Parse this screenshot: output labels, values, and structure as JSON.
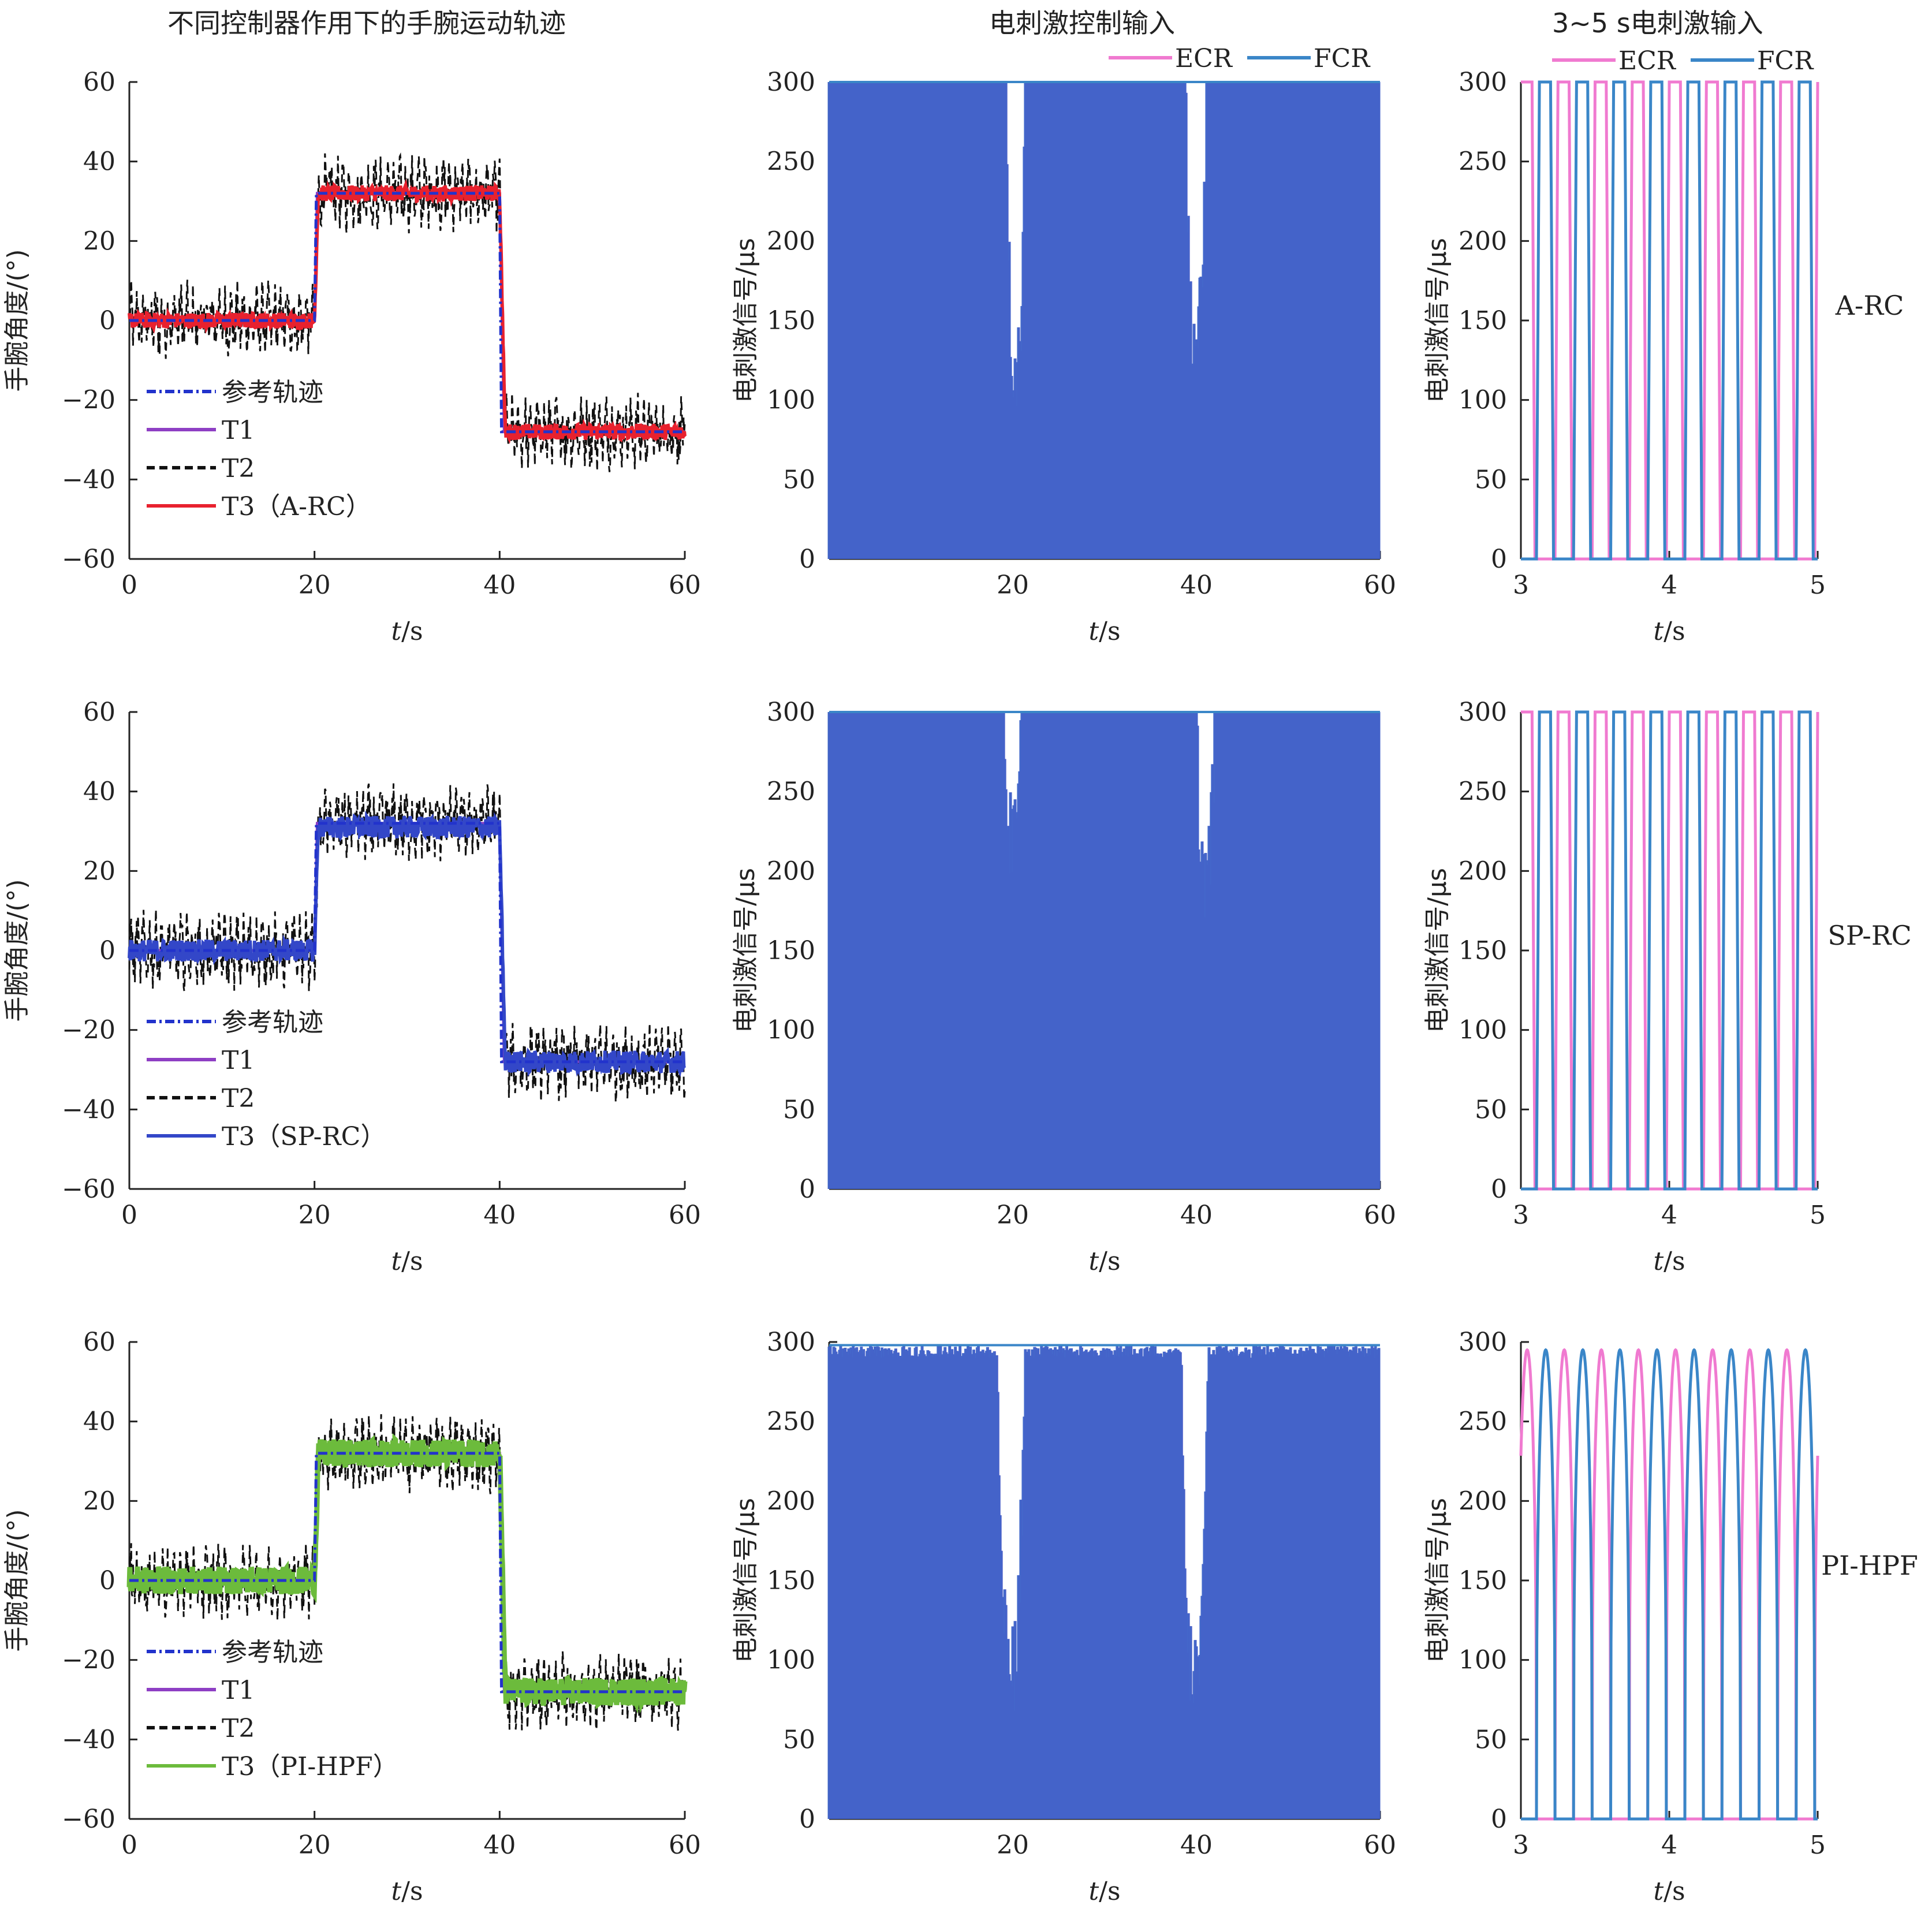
{
  "column_titles": [
    "不同控制器作用下的手腕运动轨迹",
    "电刺激控制输入",
    "3~5 s电刺激输入"
  ],
  "colors": {
    "ref": "#2233cc",
    "t1": "#8e3fc4",
    "t2": "#111111",
    "ecr": "#f07ad0",
    "fcr": "#3a86c8",
    "fcr_dense": "#3a62c8",
    "t3": [
      "#e8212e",
      "#3347c8",
      "#6cbb3c"
    ]
  },
  "chart_data": [
    {
      "type": "line",
      "panel": "row1-trajectory",
      "title": "",
      "xlabel": "t/s",
      "ylabel": "手腕角度/(°)",
      "xlim": [
        0,
        60
      ],
      "ylim": [
        -60,
        60
      ],
      "xticks": [
        "0",
        "20",
        "40",
        "60"
      ],
      "yticks": [
        "60",
        "40",
        "20",
        "0",
        "−20",
        "−40",
        "−60"
      ],
      "legend": "bottom-left",
      "series": [
        {
          "name": "参考轨迹",
          "style": "dashdot",
          "x": [
            0,
            20,
            20.2,
            40,
            40.2,
            60
          ],
          "y": [
            0,
            0,
            32,
            32,
            -28,
            -28
          ]
        },
        {
          "name": "T1",
          "style": "solid",
          "x": [
            0,
            20,
            20.3,
            40,
            40.5,
            60
          ],
          "y": [
            0,
            0,
            32,
            32,
            -28,
            -28
          ]
        },
        {
          "name": "T2",
          "style": "dashed",
          "x": [
            0,
            20,
            20.5,
            40,
            40.8,
            60
          ],
          "y": [
            0,
            0,
            32,
            32,
            -28,
            -28
          ],
          "noise": 9
        },
        {
          "name": "T3（A-RC）",
          "style": "solid",
          "x": [
            0,
            20,
            20.5,
            40,
            41,
            60
          ],
          "y": [
            0,
            0,
            32,
            32,
            -28,
            -28
          ],
          "noise": 2
        }
      ]
    },
    {
      "type": "line",
      "panel": "row1-stimulation",
      "title": "",
      "xlabel": "t/s",
      "ylabel": "电刺激信号/μs",
      "xlim": [
        0,
        60
      ],
      "ylim": [
        0,
        300
      ],
      "xticks": [
        "20",
        "40",
        "60"
      ],
      "yticks": [
        "300",
        "250",
        "200",
        "150",
        "100",
        "50",
        "0"
      ],
      "legend": "top-right",
      "series": [
        {
          "name": "ECR"
        },
        {
          "name": "FCR"
        }
      ],
      "envelope_max": 300,
      "dips": [
        [
          19.3,
          21.3,
          120
        ],
        [
          38.8,
          41.1,
          140
        ]
      ]
    },
    {
      "type": "line",
      "panel": "row1-zoom",
      "title": "",
      "xlabel": "t/s",
      "ylabel": "电刺激信号/μs",
      "xlim": [
        3,
        5
      ],
      "ylim": [
        0,
        300
      ],
      "xticks": [
        "3",
        "4",
        "5"
      ],
      "yticks": [
        "300",
        "250",
        "200",
        "150",
        "100",
        "50",
        "0"
      ],
      "legend": "top-right",
      "annotation": "A-RC",
      "amplitude": 300,
      "shape": "trapezoid",
      "period_s": 0.25,
      "series": [
        {
          "name": "ECR"
        },
        {
          "name": "FCR"
        }
      ]
    },
    {
      "type": "line",
      "panel": "row2-trajectory",
      "title": "",
      "xlabel": "t/s",
      "ylabel": "手腕角度/(°)",
      "xlim": [
        0,
        60
      ],
      "ylim": [
        -60,
        60
      ],
      "xticks": [
        "0",
        "20",
        "40",
        "60"
      ],
      "yticks": [
        "60",
        "40",
        "20",
        "0",
        "−20",
        "−40",
        "−60"
      ],
      "legend": "bottom-left",
      "series": [
        {
          "name": "参考轨迹",
          "style": "dashdot",
          "x": [
            0,
            20,
            20.2,
            40,
            40.2,
            60
          ],
          "y": [
            0,
            0,
            32,
            32,
            -28,
            -28
          ]
        },
        {
          "name": "T1",
          "style": "solid",
          "x": [
            0,
            20,
            20.3,
            40,
            40.5,
            60
          ],
          "y": [
            0,
            0,
            32,
            32,
            -28,
            -28
          ]
        },
        {
          "name": "T2",
          "style": "dashed",
          "x": [
            0,
            20,
            20.5,
            40,
            40.8,
            60
          ],
          "y": [
            0,
            0,
            32,
            32,
            -28,
            -28
          ],
          "noise": 9
        },
        {
          "name": "T3（SP-RC）",
          "style": "solid",
          "x": [
            0,
            20,
            20.5,
            40,
            41,
            60
          ],
          "y": [
            0,
            0,
            31,
            31,
            -28,
            -28
          ],
          "noise": 2.8
        }
      ]
    },
    {
      "type": "line",
      "panel": "row2-stimulation",
      "title": "",
      "xlabel": "t/s",
      "ylabel": "电刺激信号/μs",
      "xlim": [
        0,
        60
      ],
      "ylim": [
        0,
        300
      ],
      "xticks": [
        "20",
        "40",
        "60"
      ],
      "yticks": [
        "300",
        "250",
        "200",
        "150",
        "100",
        "50",
        "0"
      ],
      "series": [
        {
          "name": "ECR"
        },
        {
          "name": "FCR"
        }
      ],
      "envelope_max": 300,
      "dips": [
        [
          19,
          21,
          220
        ],
        [
          40,
          42,
          200
        ]
      ]
    },
    {
      "type": "line",
      "panel": "row2-zoom",
      "title": "",
      "xlabel": "t/s",
      "ylabel": "电刺激信号/μs",
      "xlim": [
        3,
        5
      ],
      "ylim": [
        0,
        300
      ],
      "xticks": [
        "3",
        "4",
        "5"
      ],
      "yticks": [
        "300",
        "250",
        "200",
        "150",
        "100",
        "50",
        "0"
      ],
      "annotation": "SP-RC",
      "amplitude": 300,
      "shape": "trapezoid",
      "period_s": 0.25,
      "series": [
        {
          "name": "ECR"
        },
        {
          "name": "FCR"
        }
      ]
    },
    {
      "type": "line",
      "panel": "row3-trajectory",
      "title": "",
      "xlabel": "t/s",
      "ylabel": "手腕角度/(°)",
      "xlim": [
        0,
        60
      ],
      "ylim": [
        -60,
        60
      ],
      "xticks": [
        "0",
        "20",
        "40",
        "60"
      ],
      "yticks": [
        "60",
        "40",
        "20",
        "0",
        "−20",
        "−40",
        "−60"
      ],
      "legend": "bottom-left",
      "series": [
        {
          "name": "参考轨迹",
          "style": "dashdot",
          "x": [
            0,
            20,
            20.2,
            40,
            40.2,
            60
          ],
          "y": [
            0,
            0,
            32,
            32,
            -28,
            -28
          ]
        },
        {
          "name": "T1",
          "style": "solid",
          "x": [
            0,
            20,
            20.3,
            40,
            40.5,
            60
          ],
          "y": [
            0,
            0,
            32,
            32,
            -28,
            -28
          ]
        },
        {
          "name": "T2",
          "style": "dashed",
          "x": [
            0,
            20,
            20.5,
            40,
            40.8,
            60
          ],
          "y": [
            0,
            0,
            32,
            32,
            -28,
            -28
          ],
          "noise": 9
        },
        {
          "name": "T3（PI-HPF）",
          "style": "solid",
          "x": [
            0,
            20,
            20.5,
            40,
            41,
            60
          ],
          "y": [
            0,
            0,
            32,
            32,
            -28,
            -28
          ],
          "noise": 3.5
        }
      ]
    },
    {
      "type": "line",
      "panel": "row3-stimulation",
      "title": "",
      "xlabel": "t/s",
      "ylabel": "电刺激信号/μs",
      "xlim": [
        0,
        60
      ],
      "ylim": [
        0,
        300
      ],
      "xticks": [
        "20",
        "40",
        "60"
      ],
      "yticks": [
        "300",
        "250",
        "200",
        "150",
        "100",
        "50",
        "0"
      ],
      "series": [
        {
          "name": "ECR"
        },
        {
          "name": "FCR"
        }
      ],
      "envelope_max": 298,
      "dips": [
        [
          18.3,
          21.3,
          100
        ],
        [
          38.3,
          41.3,
          95
        ]
      ]
    },
    {
      "type": "line",
      "panel": "row3-zoom",
      "title": "",
      "xlabel": "t/s",
      "ylabel": "电刺激信号/μs",
      "xlim": [
        3,
        5
      ],
      "ylim": [
        0,
        300
      ],
      "xticks": [
        "3",
        "4",
        "5"
      ],
      "yticks": [
        "300",
        "250",
        "200",
        "150",
        "100",
        "50",
        "0"
      ],
      "annotation": "PI-HPF",
      "amplitude": 295,
      "shape": "rounded",
      "period_s": 0.25,
      "series": [
        {
          "name": "ECR"
        },
        {
          "name": "FCR"
        }
      ]
    }
  ]
}
